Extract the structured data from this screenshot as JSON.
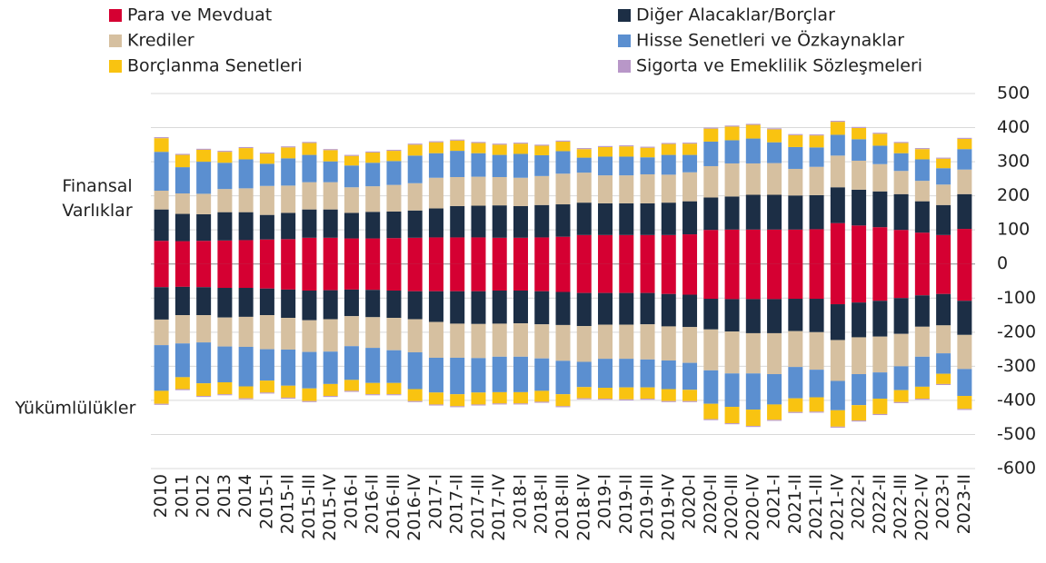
{
  "chart_data": {
    "type": "stacked_bar",
    "asset_label": "Finansal Varlıklar",
    "liability_label": "Yükümlülükler",
    "categories": [
      "2010",
      "2011",
      "2012",
      "2013",
      "2014",
      "2015-I",
      "2015-II",
      "2015-III",
      "2015-IV",
      "2016-I",
      "2016-II",
      "2016-III",
      "2016-IV",
      "2017-I",
      "2017-II",
      "2017-III",
      "2017-IV",
      "2018-I",
      "2018-II",
      "2018-III",
      "2018-IV",
      "2019-I",
      "2019-II",
      "2019-III",
      "2019-IV",
      "2020-I",
      "2020-II",
      "2020-III",
      "2020-IV",
      "2021-I",
      "2021-II",
      "2021-III",
      "2021-IV",
      "2022-I",
      "2022-II",
      "2022-III",
      "2022-IV",
      "2023-I",
      "2023-II"
    ],
    "series": [
      {
        "name": "Para ve Mevduat",
        "color": "#d50032",
        "values": [
          68,
          67,
          68,
          69,
          70,
          72,
          73,
          77,
          77,
          75,
          75,
          76,
          77,
          78,
          78,
          78,
          77,
          77,
          78,
          80,
          85,
          85,
          85,
          85,
          85,
          87,
          100,
          101,
          101,
          101,
          101,
          102,
          120,
          113,
          108,
          100,
          92,
          85,
          103
        ],
        "liability_values": [
          -68,
          -67,
          -68,
          -70,
          -70,
          -72,
          -75,
          -78,
          -77,
          -75,
          -76,
          -78,
          -80,
          -80,
          -80,
          -80,
          -78,
          -78,
          -80,
          -82,
          -85,
          -85,
          -85,
          -85,
          -88,
          -90,
          -102,
          -103,
          -103,
          -103,
          -102,
          -102,
          -118,
          -113,
          -108,
          -100,
          -92,
          -88,
          -108
        ]
      },
      {
        "name": "Diğer Alacaklar/Borçlar",
        "color": "#1c2e45",
        "values": [
          92,
          80,
          78,
          83,
          82,
          72,
          77,
          83,
          83,
          75,
          78,
          78,
          80,
          85,
          92,
          93,
          95,
          93,
          95,
          95,
          95,
          93,
          93,
          93,
          95,
          97,
          95,
          97,
          102,
          102,
          100,
          100,
          105,
          105,
          105,
          105,
          92,
          88,
          102
        ],
        "liability_values": [
          -95,
          -83,
          -82,
          -87,
          -85,
          -78,
          -83,
          -87,
          -85,
          -78,
          -80,
          -80,
          -82,
          -90,
          -95,
          -96,
          -97,
          -96,
          -97,
          -97,
          -97,
          -93,
          -93,
          -92,
          -95,
          -95,
          -90,
          -95,
          -100,
          -100,
          -95,
          -98,
          -105,
          -102,
          -105,
          -105,
          -92,
          -92,
          -100
        ]
      },
      {
        "name": "Krediler",
        "color": "#d6c0a0",
        "values": [
          55,
          60,
          60,
          68,
          70,
          85,
          80,
          80,
          80,
          75,
          75,
          78,
          80,
          90,
          85,
          85,
          83,
          83,
          85,
          90,
          88,
          82,
          82,
          85,
          82,
          85,
          92,
          97,
          92,
          93,
          78,
          83,
          93,
          85,
          80,
          68,
          60,
          60,
          72
        ],
        "liability_values": [
          -75,
          -83,
          -80,
          -85,
          -88,
          -100,
          -93,
          -93,
          -95,
          -88,
          -90,
          -95,
          -97,
          -105,
          -100,
          -100,
          -97,
          -98,
          -100,
          -105,
          -105,
          -100,
          -100,
          -103,
          -100,
          -105,
          -120,
          -123,
          -118,
          -120,
          -105,
          -110,
          -120,
          -108,
          -105,
          -95,
          -88,
          -82,
          -100
        ]
      },
      {
        "name": "Hisse Senetleri ve Özkaynaklar",
        "color": "#5b8fd0",
        "values": [
          114,
          77,
          94,
          77,
          85,
          65,
          80,
          80,
          61,
          64,
          69,
          70,
          81,
          72,
          77,
          69,
          65,
          70,
          61,
          66,
          44,
          55,
          55,
          50,
          58,
          51,
          72,
          68,
          73,
          61,
          64,
          57,
          61,
          63,
          54,
          52,
          63,
          48,
          60
        ],
        "liability_values": [
          -134,
          -99,
          -120,
          -105,
          -116,
          -92,
          -106,
          -107,
          -95,
          -99,
          -103,
          -96,
          -108,
          -102,
          -107,
          -101,
          -104,
          -104,
          -95,
          -98,
          -74,
          -85,
          -84,
          -82,
          -84,
          -79,
          -98,
          -98,
          -106,
          -89,
          -92,
          -81,
          -86,
          -91,
          -77,
          -70,
          -88,
          -60,
          -79
        ]
      },
      {
        "name": "Borçlanma Senetleri",
        "color": "#f9c311",
        "values": [
          40,
          36,
          35,
          32,
          33,
          30,
          32,
          35,
          33,
          28,
          30,
          30,
          32,
          32,
          30,
          30,
          30,
          30,
          28,
          28,
          25,
          28,
          30,
          28,
          32,
          33,
          38,
          40,
          40,
          38,
          35,
          35,
          38,
          33,
          35,
          30,
          30,
          28,
          30
        ],
        "liability_values": [
          -38,
          -35,
          -37,
          -35,
          -35,
          -35,
          -35,
          -37,
          -35,
          -32,
          -33,
          -33,
          -35,
          -35,
          -35,
          -35,
          -33,
          -33,
          -32,
          -35,
          -33,
          -32,
          -35,
          -33,
          -35,
          -33,
          -45,
          -48,
          -48,
          -45,
          -40,
          -42,
          -48,
          -45,
          -45,
          -35,
          -35,
          -30,
          -38
        ]
      },
      {
        "name": "Sigorta ve Emeklilik Sözleşmeleri",
        "color": "#b897c8",
        "values": [
          3,
          3,
          3,
          3,
          3,
          3,
          3,
          3,
          3,
          3,
          3,
          3,
          3,
          3,
          3,
          3,
          3,
          3,
          3,
          3,
          3,
          3,
          3,
          3,
          3,
          3,
          3,
          3,
          3,
          3,
          3,
          3,
          3,
          3,
          3,
          3,
          3,
          3,
          3
        ],
        "liability_values": [
          -3,
          -3,
          -3,
          -3,
          -3,
          -3,
          -3,
          -3,
          -3,
          -3,
          -3,
          -3,
          -3,
          -3,
          -3,
          -3,
          -3,
          -3,
          -3,
          -3,
          -3,
          -3,
          -3,
          -3,
          -3,
          -3,
          -3,
          -3,
          -3,
          -3,
          -3,
          -3,
          -3,
          -3,
          -3,
          -3,
          -3,
          -3,
          -3
        ]
      }
    ],
    "ylim": [
      -600,
      500
    ],
    "yticks": [
      -600,
      -500,
      -400,
      -300,
      -200,
      -100,
      0,
      100,
      200,
      300,
      400,
      500
    ],
    "grid": true
  }
}
